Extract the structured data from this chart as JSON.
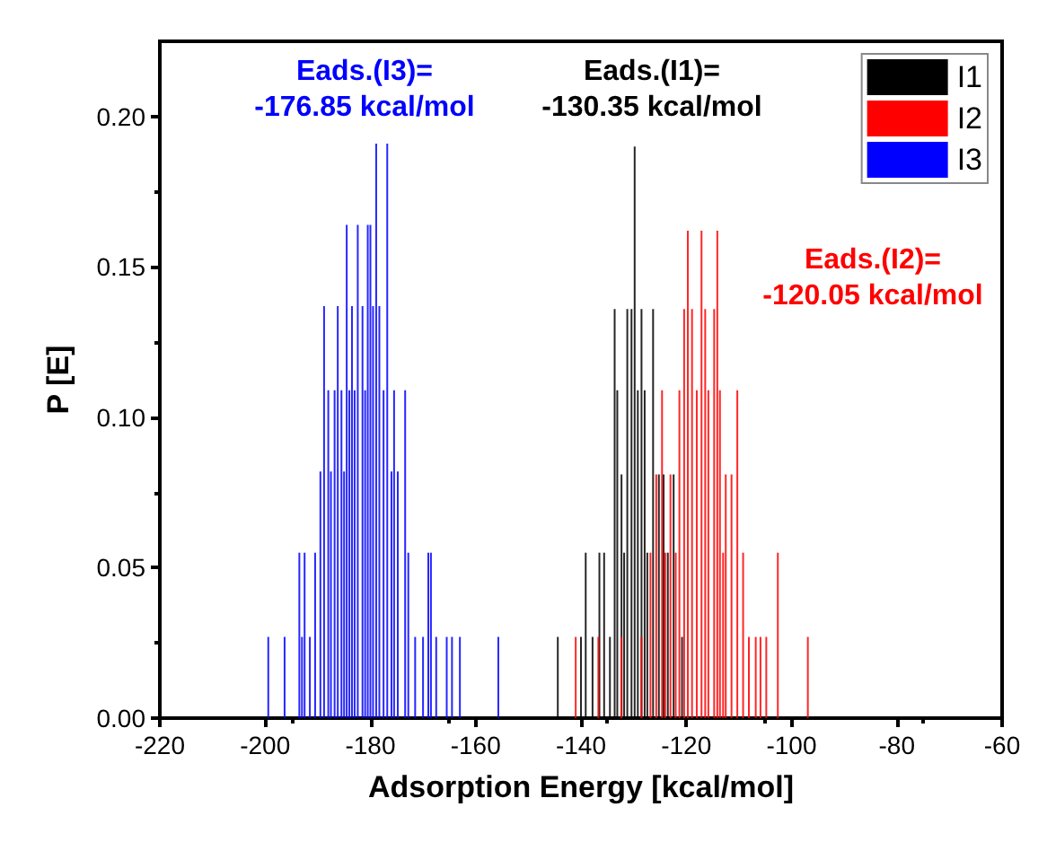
{
  "chart_data": {
    "type": "bar",
    "xlabel": "Adsorption Energy [kcal/mol]",
    "ylabel": "P [E]",
    "xlim": [
      -220,
      -60
    ],
    "xticks": [
      -220,
      -200,
      -180,
      -160,
      -140,
      -120,
      -100,
      -80,
      -60
    ],
    "ylim": [
      0,
      0.225
    ],
    "yticks": [
      {
        "value": 0,
        "label": "0.00"
      },
      {
        "value": 0.05,
        "label": "0.05"
      },
      {
        "value": 0.1,
        "label": "0.10"
      },
      {
        "value": 0.15,
        "label": "0.15"
      },
      {
        "value": 0.2,
        "label": "0.20"
      }
    ],
    "grid": false,
    "legend": "top right",
    "annotations": [
      "Eads.(I3)=\n-176.85 kcal/mol",
      "Eads.(I1)=\n-130.35 kcal/mol",
      "Eads.(I2)=\n-120.05 kcal/mol"
    ],
    "series": [
      {
        "name": "I1",
        "color": "#000000",
        "x": [
          -144.4,
          -140,
          -139.1,
          -137.8,
          -136.5,
          -135.6,
          -134.5,
          -133.6,
          -133.1,
          -132.3,
          -131.8,
          -131.2,
          -130.4,
          -129.8,
          -129.2,
          -128.5,
          -127.9,
          -127.4,
          -126.3,
          -125.2,
          -124.3,
          -123.5,
          -122.4,
          -120.8
        ],
        "values": [
          0.027,
          0.027,
          0.055,
          0.027,
          0.055,
          0.055,
          0.027,
          0.136,
          0.109,
          0.081,
          0.055,
          0.136,
          0.136,
          0.19,
          0.109,
          0.136,
          0.109,
          0.055,
          0.136,
          0.081,
          0.081,
          0.055,
          0.081,
          0.027
        ]
      },
      {
        "name": "I2",
        "color": "#ff0000",
        "x": [
          -141,
          -136.7,
          -132.3,
          -128.5,
          -126.8,
          -125.7,
          -124.6,
          -124,
          -123,
          -122,
          -121.3,
          -120.4,
          -119.7,
          -118.9,
          -118,
          -117.1,
          -116.4,
          -115.8,
          -114.7,
          -114.1,
          -113.6,
          -113,
          -112.5,
          -111.4,
          -110.3,
          -109.2,
          -108.1,
          -106.8,
          -105.9,
          -104.8,
          -102.6,
          -96.9
        ],
        "values": [
          0.027,
          0.027,
          0.027,
          0.027,
          0.055,
          0.081,
          0.109,
          0.055,
          0.081,
          0.055,
          0.109,
          0.136,
          0.162,
          0.136,
          0.109,
          0.162,
          0.136,
          0.109,
          0.136,
          0.162,
          0.109,
          0.055,
          0.081,
          0.081,
          0.109,
          0.055,
          0.027,
          0.027,
          0.027,
          0.027,
          0.055,
          0.027
        ]
      },
      {
        "name": "I3",
        "color": "#0000ff",
        "x": [
          -199.4,
          -196.3,
          -193.5,
          -193,
          -192.5,
          -191.5,
          -190.5,
          -189.5,
          -188.8,
          -188,
          -187.5,
          -186.8,
          -186.2,
          -185.5,
          -185,
          -184.5,
          -184,
          -183.5,
          -183,
          -182.4,
          -181.5,
          -181,
          -180.5,
          -180,
          -179.5,
          -178.9,
          -178.3,
          -177.5,
          -176.8,
          -176,
          -175.5,
          -174.8,
          -173.4,
          -172.8,
          -171.5,
          -170,
          -169,
          -168.5,
          -167.5,
          -165.5,
          -164.5,
          -163,
          -155.7
        ],
        "values": [
          0.027,
          0.027,
          0.055,
          0.027,
          0.055,
          0.027,
          0.055,
          0.082,
          0.137,
          0.109,
          0.082,
          0.109,
          0.137,
          0.109,
          0.082,
          0.164,
          0.109,
          0.137,
          0.109,
          0.164,
          0.137,
          0.109,
          0.164,
          0.164,
          0.137,
          0.191,
          0.137,
          0.109,
          0.191,
          0.082,
          0.109,
          0.082,
          0.109,
          0.055,
          0.027,
          0.027,
          0.055,
          0.055,
          0.027,
          0.027,
          0.027,
          0.027,
          0.027
        ]
      }
    ]
  }
}
